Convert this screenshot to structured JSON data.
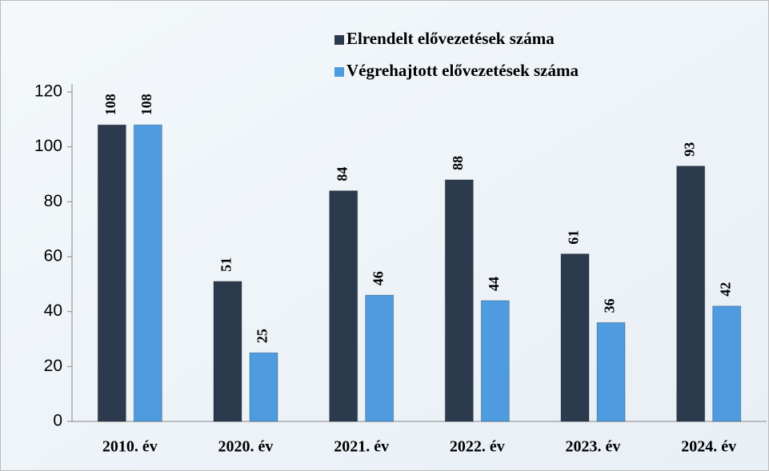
{
  "chart_data": {
    "type": "bar",
    "categories": [
      "2010. év",
      "2020. év",
      "2021. év",
      "2022. év",
      "2023. év",
      "2024. év"
    ],
    "series": [
      {
        "name": "Elrendelt elővezetések száma",
        "color": "#2c3a4e",
        "values": [
          108,
          51,
          84,
          88,
          61,
          93
        ]
      },
      {
        "name": "Végrehajtott elővezetések száma",
        "color": "#4e9be0",
        "values": [
          108,
          25,
          46,
          44,
          36,
          42
        ]
      }
    ],
    "ylim": [
      0,
      120
    ],
    "yticks": [
      0,
      20,
      40,
      60,
      80,
      100,
      120
    ],
    "grid": false
  }
}
